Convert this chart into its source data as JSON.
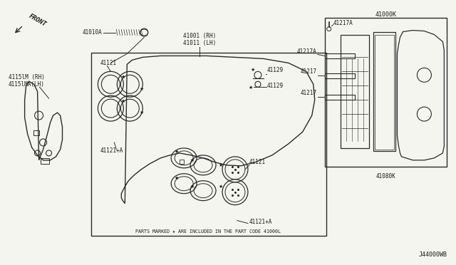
{
  "bg_color": "#f5f5f0",
  "lc": "#2a2a2a",
  "tc": "#1a1a1a",
  "fw": 6.4,
  "fh": 3.72,
  "labels": {
    "front": "FRONT",
    "p41010A": "41010A",
    "p41001RH": "41001 (RH)",
    "p41011LH": "41011 (LH)",
    "p41121_top": "41121",
    "p41121pA_top": "41121+A",
    "p41129": "41129",
    "p41128": "41129",
    "p41000K": "41000K",
    "p41217A_top": "41217A",
    "p41217A_left": "41217A",
    "p41217_1": "41217",
    "p41217_2": "41217",
    "p41080K": "41080K",
    "p41121_bot": "41121",
    "p41121pA_bot": "41121+A",
    "p4115lM": "4115lM (RH)",
    "p4115lMA": "4115lMA(LH)",
    "note": "PARTS MARKED ★ ARE INCLUDED IN THE PART CODE 41000L",
    "code": "J44000WB"
  }
}
